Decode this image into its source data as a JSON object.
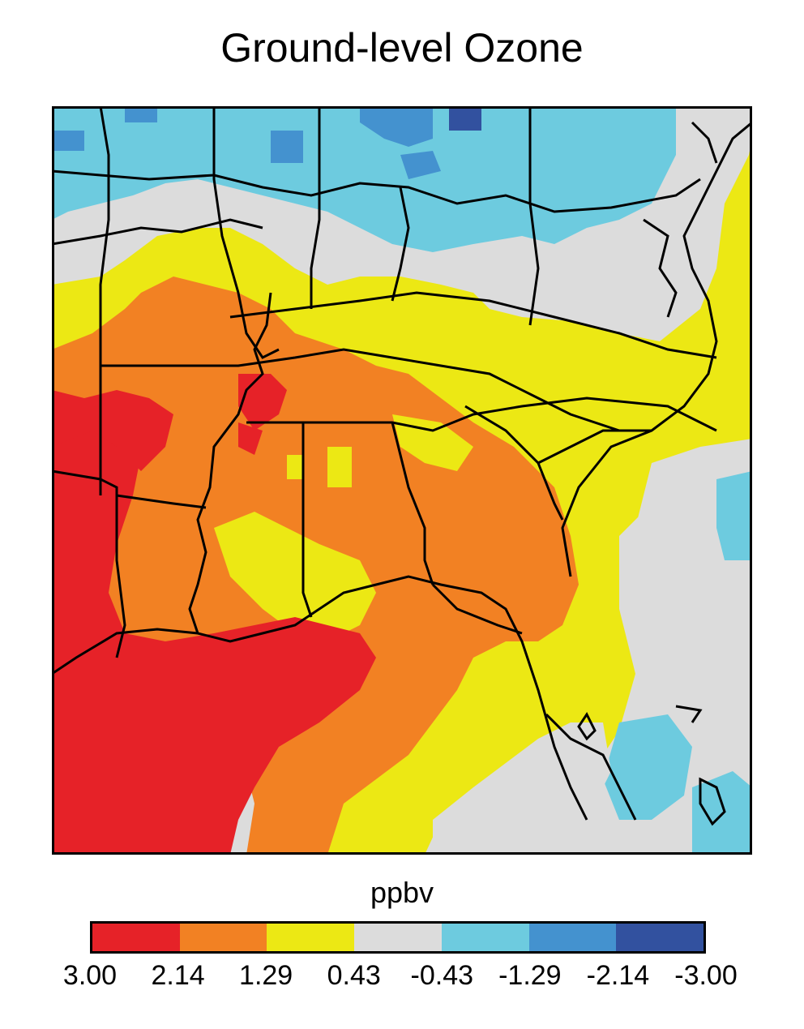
{
  "title": "Ground-level Ozone",
  "unit_label": "ppbv",
  "legend": {
    "tick_labels": [
      "3.00",
      "2.14",
      "1.29",
      "0.43",
      "-0.43",
      "-1.29",
      "-2.14",
      "-3.00"
    ],
    "bins": [
      {
        "from": "3.00",
        "to": "2.14",
        "color": "#e62228"
      },
      {
        "from": "2.14",
        "to": "1.29",
        "color": "#f28123"
      },
      {
        "from": "1.29",
        "to": "0.43",
        "color": "#ece814"
      },
      {
        "from": "0.43",
        "to": "-0.43",
        "color": "#dcdcdc"
      },
      {
        "from": "-0.43",
        "to": "-1.29",
        "color": "#6dcbdf"
      },
      {
        "from": "-1.29",
        "to": "-2.14",
        "color": "#4492cf"
      },
      {
        "from": "-2.14",
        "to": "-3.00",
        "color": "#32519f"
      }
    ]
  },
  "map": {
    "region": "southeastern-united-states",
    "layers": [
      "ozone-change-field",
      "state-boundaries",
      "coastlines"
    ]
  }
}
